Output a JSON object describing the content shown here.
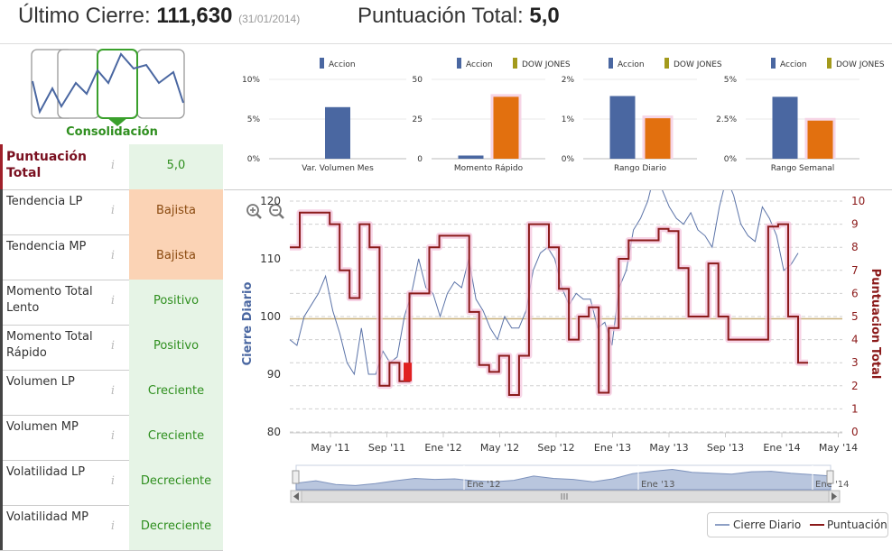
{
  "header": {
    "last_close_label": "Último Cierre:",
    "last_close_value": "111,630",
    "last_close_date": "(31/01/2014)",
    "total_score_label": "Puntuación Total:",
    "total_score_value": "5,0"
  },
  "pattern": {
    "label": "Consolidación",
    "selected_index": 2
  },
  "score_rows": [
    {
      "label": "Puntuación Total",
      "value": "5,0",
      "tone": "green"
    },
    {
      "label": "Tendencia LP",
      "value": "Bajista",
      "tone": "orange"
    },
    {
      "label": "Tendencia MP",
      "value": "Bajista",
      "tone": "orange"
    },
    {
      "label": "Momento Total Lento",
      "value": "Positivo",
      "tone": "green"
    },
    {
      "label": "Momento Total Rápido",
      "value": "Positivo",
      "tone": "green"
    },
    {
      "label": "Volumen LP",
      "value": "Creciente",
      "tone": "green"
    },
    {
      "label": "Volumen MP",
      "value": "Creciente",
      "tone": "green"
    },
    {
      "label": "Volatilidad LP",
      "value": "Decreciente",
      "tone": "green"
    },
    {
      "label": "Volatilidad MP",
      "value": "Decreciente",
      "tone": "green"
    }
  ],
  "info_glyph": "i",
  "colors": {
    "accion": "#4a67a1",
    "dow_jones": "#e2700f",
    "puntuacion": "#8b1a1a",
    "green": "#2f8f1f"
  },
  "chart_data": [
    {
      "type": "bar",
      "legend": [
        "Accion"
      ],
      "categories": [
        "Var. Volumen Mes"
      ],
      "series": [
        {
          "name": "Accion",
          "values": [
            6.5
          ]
        }
      ],
      "yticks": [
        "10%",
        "5%",
        "0%"
      ],
      "ylim": [
        0,
        10
      ]
    },
    {
      "type": "bar",
      "legend": [
        "Accion",
        "DOW JONES"
      ],
      "categories": [
        "Momento Rápido"
      ],
      "series": [
        {
          "name": "Accion",
          "values": [
            2
          ]
        },
        {
          "name": "DOW JONES",
          "values": [
            39
          ]
        }
      ],
      "yticks": [
        "50",
        "25",
        "0"
      ],
      "ylim": [
        0,
        50
      ]
    },
    {
      "type": "bar",
      "legend": [
        "Accion",
        "DOW JONES"
      ],
      "categories": [
        "Rango Diario"
      ],
      "series": [
        {
          "name": "Accion",
          "values": [
            1.58
          ]
        },
        {
          "name": "DOW JONES",
          "values": [
            1.02
          ]
        }
      ],
      "yticks": [
        "2%",
        "1%",
        "0%"
      ],
      "ylim": [
        0,
        2
      ]
    },
    {
      "type": "bar",
      "legend": [
        "Accion",
        "DOW JONES"
      ],
      "categories": [
        "Rango Semanal"
      ],
      "series": [
        {
          "name": "Accion",
          "values": [
            3.9
          ]
        },
        {
          "name": "DOW JONES",
          "values": [
            2.4
          ]
        }
      ],
      "yticks": [
        "5%",
        "2.5%",
        "0%"
      ],
      "ylim": [
        0,
        5
      ]
    },
    {
      "type": "line",
      "ylabel_left": "Cierre Diario",
      "ylabel_right": "Puntuacion Total",
      "yticks_left": [
        "120",
        "110",
        "100",
        "90",
        "80"
      ],
      "yticks_right": [
        "10",
        "9",
        "8",
        "7",
        "6",
        "5",
        "4",
        "3",
        "2",
        "1",
        "0"
      ],
      "ylim_left": [
        80,
        120
      ],
      "ylim_right": [
        0,
        10
      ],
      "xticks": [
        "May '11",
        "Sep '11",
        "Ene '12",
        "May '12",
        "Sep '12",
        "Ene '13",
        "May '13",
        "Sep '13",
        "Ene '14",
        "May '14"
      ],
      "navigator_ticks": [
        "Ene '12",
        "Ene '13",
        "Ene '14"
      ],
      "reference_line": 4.9,
      "series": [
        {
          "name": "Cierre Diario",
          "values": [
            96,
            95,
            100,
            102,
            104,
            107,
            101,
            97,
            92,
            90,
            98,
            90,
            90,
            94,
            92,
            93,
            100,
            104,
            110,
            105,
            104,
            100,
            104,
            106,
            105,
            110,
            103,
            101,
            98,
            96,
            100,
            98,
            98,
            101,
            108,
            111,
            112,
            110,
            105,
            102,
            104,
            103,
            103,
            98,
            99,
            95,
            105,
            108,
            115,
            117,
            120,
            125,
            122,
            119,
            117,
            116,
            118,
            115,
            114,
            112,
            119,
            124,
            121,
            116,
            114,
            113,
            119,
            117,
            114,
            108,
            109,
            111
          ]
        },
        {
          "name": "Puntuación",
          "values": [
            8,
            9.5,
            9.5,
            9.5,
            9,
            7,
            5.8,
            9,
            8,
            2,
            3,
            2.2,
            6,
            6,
            8,
            8.5,
            8.5,
            8.5,
            5.2,
            2.9,
            2.6,
            3.3,
            1.6,
            3.3,
            9,
            9,
            8,
            6.2,
            4,
            5,
            5.4,
            1.7,
            4.5,
            7.5,
            8.3,
            8.3,
            8.3,
            8.8,
            8.7,
            7.1,
            5,
            5,
            7.3,
            5,
            4,
            4,
            4,
            4,
            8.9,
            9,
            5,
            3
          ]
        }
      ],
      "legend": [
        "Cierre Diario",
        "Puntuación"
      ],
      "navigator_values": [
        95,
        100,
        92,
        90,
        94,
        100,
        105,
        103,
        104,
        100,
        98,
        101,
        110,
        105,
        103,
        98,
        104,
        115,
        120,
        124,
        118,
        116,
        114,
        119,
        120,
        116,
        113,
        110
      ]
    }
  ]
}
